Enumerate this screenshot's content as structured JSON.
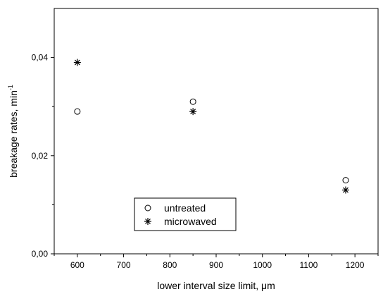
{
  "chart_data": {
    "type": "scatter",
    "title": "",
    "xlabel": "lower interval size limit, μm",
    "ylabel": "breakage rates, min",
    "ylabel_superscript": "-1",
    "xlim": [
      550,
      1250
    ],
    "ylim": [
      0,
      0.05
    ],
    "x_ticks": [
      600,
      700,
      800,
      900,
      1000,
      1100,
      1200
    ],
    "x_tick_labels": [
      "600",
      "700",
      "800",
      "900",
      "1000",
      "1100",
      "1200"
    ],
    "y_ticks": [
      0,
      0.02,
      0.04
    ],
    "y_tick_labels": [
      "0,00",
      "0,02",
      "0,04"
    ],
    "grid": false,
    "legend_position": "bottom-center",
    "series": [
      {
        "name": "untreated",
        "marker": "open-circle",
        "x": [
          600,
          850,
          1180
        ],
        "y": [
          0.029,
          0.031,
          0.015
        ]
      },
      {
        "name": "microwaved",
        "marker": "asterisk",
        "x": [
          600,
          850,
          1180
        ],
        "y": [
          0.039,
          0.029,
          0.013
        ]
      }
    ]
  }
}
